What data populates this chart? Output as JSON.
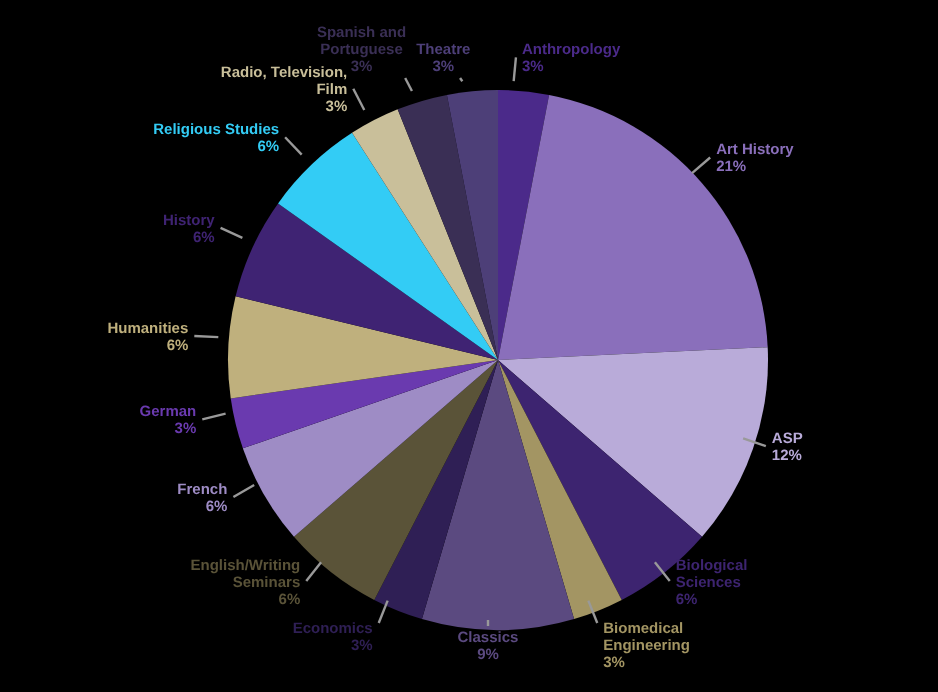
{
  "chart_data": {
    "type": "pie",
    "categories": [
      "Anthropology",
      "Art History",
      "ASP",
      "Biological Sciences",
      "Biomedical Engineering",
      "Classics",
      "Economics",
      "English/Writing Seminars",
      "French",
      "German",
      "Humanities",
      "History",
      "Religious Studies",
      "Radio, Television, Film",
      "Spanish and Portuguese",
      "Theatre"
    ],
    "values": [
      3,
      21,
      12,
      6,
      3,
      9,
      3,
      6,
      6,
      3,
      6,
      6,
      6,
      3,
      3,
      3
    ],
    "value_labels": [
      "3%",
      "21%",
      "12%",
      "6%",
      "3%",
      "9%",
      "3%",
      "6%",
      "6%",
      "3%",
      "6%",
      "6%",
      "6%",
      "3%",
      "3%",
      "3%"
    ],
    "colors": [
      "#4b2a8a",
      "#8a6fbb",
      "#b9abd9",
      "#3d2470",
      "#a39563",
      "#5b4a80",
      "#2f1f55",
      "#5a5338",
      "#9e8cc5",
      "#6a3aaf",
      "#bfb07d",
      "#3f2373",
      "#33ccf5",
      "#c9bf9a",
      "#3a2f55",
      "#4d3f78"
    ]
  }
}
